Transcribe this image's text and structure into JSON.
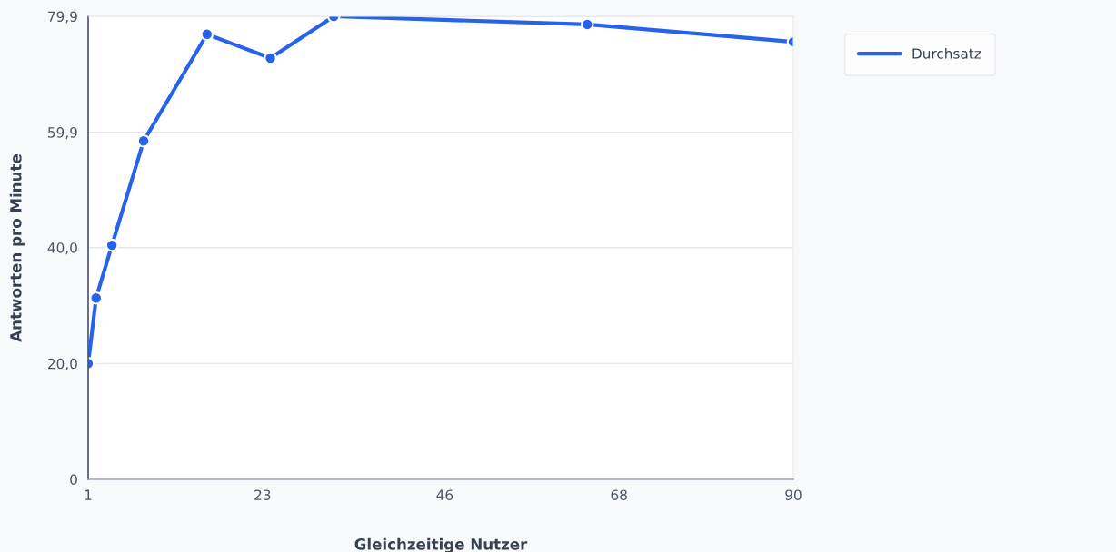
{
  "chart_data": {
    "type": "line",
    "xlabel": "Gleichzeitige Nutzer",
    "ylabel": "Antworten pro Minute",
    "x": [
      1,
      2,
      4,
      8,
      16,
      24,
      32,
      64,
      90
    ],
    "series": [
      {
        "name": "Durchsatz",
        "color": "#2563eb",
        "values": [
          20.0,
          31.3,
          40.4,
          58.4,
          76.8,
          72.7,
          79.9,
          78.5,
          75.5
        ]
      }
    ],
    "xlim": [
      1,
      90
    ],
    "xticks": [
      1,
      23,
      46,
      68,
      90
    ],
    "ylim": [
      0,
      79.9
    ],
    "yticks": [
      0,
      {
        "value": 20.0,
        "label": "20,0"
      },
      {
        "value": 40.0,
        "label": "40,0"
      },
      {
        "value": 59.9,
        "label": "59,9"
      },
      {
        "value": 79.9,
        "label": "79,9"
      }
    ],
    "grid": "y",
    "legend": "top right",
    "marker": "circle",
    "line_style": "solid"
  }
}
